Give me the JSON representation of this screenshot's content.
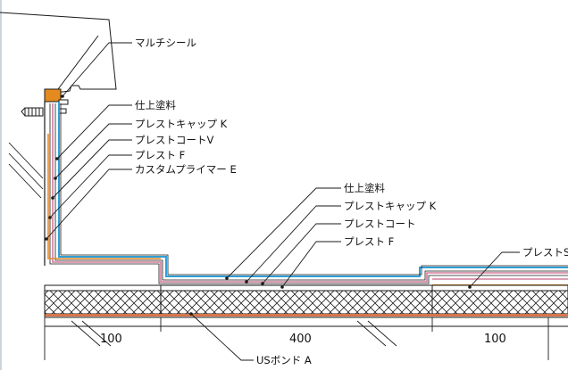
{
  "wall_callouts": [
    {
      "key": "multi_seal",
      "label": "マルチシール"
    },
    {
      "key": "finish",
      "label": "仕上塗料"
    },
    {
      "key": "cap_k",
      "label": "プレストキャップ K"
    },
    {
      "key": "coat_v",
      "label": "プレストコートV"
    },
    {
      "key": "plest_f",
      "label": "プレスト F"
    },
    {
      "key": "primer_e",
      "label": "カスタムプライマー E"
    }
  ],
  "floor_callouts": [
    {
      "key": "finish",
      "label": "仕上塗料"
    },
    {
      "key": "cap_k",
      "label": "プレストキャップ K"
    },
    {
      "key": "coat",
      "label": "プレストコート"
    },
    {
      "key": "plest_f",
      "label": "プレスト F"
    },
    {
      "key": "plest_s",
      "label": "プレストS"
    }
  ],
  "bottom_callout": {
    "label": "USボンド A"
  },
  "dimensions": [
    "100",
    "400",
    "100"
  ],
  "colors": {
    "line": "#1a1a1a",
    "blue_layer": "#2f9fd6",
    "orange_layer": "#e08a2e",
    "pink_layer": "#d27b9a",
    "substrate_orange": "#d8764a",
    "cap_block": "#e58a1f"
  }
}
